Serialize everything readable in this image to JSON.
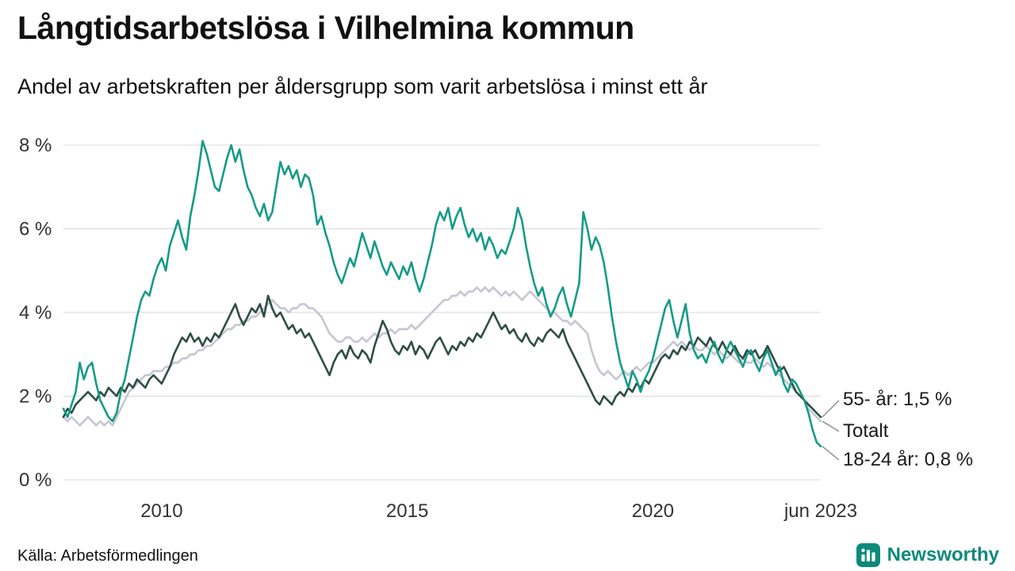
{
  "header": {
    "title": "Långtidsarbetslösa i Vilhelmina kommun",
    "subtitle": "Andel av arbetskraften per åldersgrupp som varit arbetslösa i minst ett år"
  },
  "annotations": [
    {
      "label": "55- år: 1,5 %"
    },
    {
      "label": "Totalt"
    },
    {
      "label": "18-24 år: 0,8 %"
    }
  ],
  "footer": {
    "source": "Källa: Arbetsförmedlingen",
    "brand": "Newsworthy"
  },
  "colors": {
    "teal_line": "#159b87",
    "dark_line": "#2e4e46",
    "gray_line": "#c5c6d1",
    "brand_teal": "#0d8a7a",
    "grid": "#d9d9d9",
    "axis_text": "#333333",
    "leader": "#8a8a8a"
  },
  "chart_data": {
    "type": "line",
    "title": "Långtidsarbetslösa i Vilhelmina kommun",
    "subtitle": "Andel av arbetskraften per åldersgrupp som varit arbetslösa i minst ett år",
    "unit": "%",
    "frequency": "monthly",
    "x_start": "2008-01",
    "x_end": "2023-06",
    "ylim": [
      0,
      8.5
    ],
    "grid": true,
    "grid_color": "#d9d9d9",
    "axis_color": "#333333",
    "legend_position": "right-end-labels",
    "yticks": [
      {
        "value": 0,
        "label": "0 %"
      },
      {
        "value": 2,
        "label": "2 %"
      },
      {
        "value": 4,
        "label": "4 %"
      },
      {
        "value": 6,
        "label": "6 %"
      },
      {
        "value": 8,
        "label": "8 %"
      }
    ],
    "xticks": [
      {
        "index": 24,
        "label": "2010"
      },
      {
        "index": 84,
        "label": "2015"
      },
      {
        "index": 144,
        "label": "2020"
      },
      {
        "index": 185,
        "label": "jun 2023"
      }
    ],
    "annotation_targets": [
      "55- år",
      "Totalt",
      "18-24 år"
    ],
    "series": [
      {
        "name": "18-24 år",
        "color": "#159b87",
        "end_label": "18-24 år: 0,8 %",
        "end_value": 0.8,
        "values": [
          1.7,
          1.5,
          1.8,
          2.1,
          2.8,
          2.4,
          2.7,
          2.8,
          2.3,
          1.9,
          1.7,
          1.5,
          1.4,
          1.6,
          2.1,
          2.4,
          2.9,
          3.4,
          3.9,
          4.3,
          4.5,
          4.4,
          4.8,
          5.1,
          5.3,
          5.0,
          5.6,
          5.9,
          6.2,
          5.8,
          5.5,
          6.3,
          6.8,
          7.4,
          8.1,
          7.8,
          7.4,
          7.0,
          6.9,
          7.3,
          7.7,
          8.0,
          7.6,
          7.9,
          7.4,
          7.0,
          6.8,
          6.5,
          6.3,
          6.6,
          6.2,
          6.4,
          7.0,
          7.6,
          7.3,
          7.5,
          7.2,
          7.4,
          7.0,
          7.3,
          7.2,
          6.8,
          6.1,
          6.3,
          5.9,
          5.6,
          5.2,
          4.9,
          4.7,
          5.0,
          5.3,
          5.1,
          5.5,
          5.9,
          5.6,
          5.3,
          5.7,
          5.4,
          5.1,
          4.9,
          5.2,
          5.0,
          4.8,
          5.1,
          4.9,
          5.2,
          4.8,
          4.5,
          4.8,
          5.2,
          5.6,
          6.1,
          6.4,
          6.2,
          6.5,
          6.0,
          6.3,
          6.5,
          6.1,
          5.8,
          6.0,
          5.7,
          5.9,
          5.5,
          5.8,
          5.6,
          5.3,
          5.5,
          5.4,
          5.7,
          6.0,
          6.5,
          6.2,
          5.6,
          5.1,
          4.7,
          4.4,
          4.6,
          4.2,
          3.9,
          4.1,
          4.4,
          4.6,
          4.2,
          3.9,
          4.3,
          4.7,
          6.4,
          6.0,
          5.5,
          5.8,
          5.6,
          5.2,
          4.6,
          3.9,
          3.3,
          2.8,
          2.5,
          2.2,
          2.6,
          2.4,
          2.1,
          2.4,
          2.6,
          2.9,
          3.3,
          3.7,
          4.1,
          4.3,
          3.8,
          3.4,
          3.8,
          4.2,
          3.5,
          3.1,
          2.9,
          3.0,
          2.8,
          3.1,
          3.3,
          3.0,
          2.8,
          3.1,
          3.3,
          3.1,
          2.9,
          2.7,
          3.0,
          3.1,
          2.8,
          2.6,
          2.9,
          3.1,
          2.8,
          2.5,
          2.7,
          2.3,
          2.1,
          2.4,
          2.3,
          2.1,
          1.9,
          1.6,
          1.2,
          0.9,
          0.8
        ]
      },
      {
        "name": "55- år",
        "color": "#2e4e46",
        "end_label": "55- år: 1,5 %",
        "end_value": 1.5,
        "values": [
          1.5,
          1.7,
          1.6,
          1.8,
          1.9,
          2.0,
          2.1,
          2.0,
          1.9,
          2.1,
          2.0,
          2.2,
          2.1,
          2.0,
          2.2,
          2.1,
          2.3,
          2.2,
          2.4,
          2.3,
          2.2,
          2.4,
          2.5,
          2.4,
          2.3,
          2.5,
          2.7,
          3.0,
          3.2,
          3.4,
          3.3,
          3.5,
          3.3,
          3.4,
          3.2,
          3.4,
          3.3,
          3.5,
          3.4,
          3.6,
          3.8,
          4.0,
          4.2,
          3.9,
          3.7,
          3.9,
          4.1,
          4.0,
          4.2,
          3.9,
          4.4,
          4.1,
          3.9,
          4.0,
          3.8,
          3.6,
          3.7,
          3.5,
          3.6,
          3.4,
          3.5,
          3.3,
          3.1,
          2.9,
          2.7,
          2.5,
          2.8,
          3.0,
          3.1,
          2.9,
          3.2,
          3.0,
          2.9,
          3.1,
          3.0,
          2.8,
          3.2,
          3.5,
          3.8,
          3.6,
          3.3,
          3.1,
          3.0,
          3.2,
          3.1,
          3.3,
          3.0,
          3.2,
          3.1,
          2.9,
          3.1,
          3.3,
          3.4,
          3.2,
          3.0,
          3.2,
          3.1,
          3.3,
          3.2,
          3.4,
          3.3,
          3.5,
          3.4,
          3.6,
          3.8,
          4.0,
          3.8,
          3.6,
          3.7,
          3.5,
          3.6,
          3.4,
          3.3,
          3.5,
          3.3,
          3.2,
          3.4,
          3.3,
          3.5,
          3.6,
          3.5,
          3.4,
          3.6,
          3.3,
          3.1,
          2.9,
          2.7,
          2.5,
          2.3,
          2.1,
          1.9,
          1.8,
          2.0,
          1.9,
          1.8,
          2.0,
          2.1,
          2.0,
          2.2,
          2.1,
          2.3,
          2.2,
          2.4,
          2.3,
          2.5,
          2.7,
          2.9,
          3.0,
          2.9,
          3.1,
          3.0,
          3.2,
          3.1,
          3.3,
          3.2,
          3.4,
          3.3,
          3.2,
          3.4,
          3.2,
          3.1,
          3.3,
          3.1,
          3.0,
          3.2,
          3.0,
          2.9,
          3.1,
          3.0,
          3.1,
          2.9,
          3.0,
          3.2,
          3.0,
          2.8,
          2.6,
          2.7,
          2.5,
          2.3,
          2.1,
          2.0,
          1.9,
          1.8,
          1.7,
          1.6,
          1.5
        ]
      },
      {
        "name": "Totalt",
        "color": "#c5c6d1",
        "end_label": "Totalt",
        "end_value": 1.4,
        "values": [
          1.5,
          1.4,
          1.5,
          1.4,
          1.3,
          1.4,
          1.5,
          1.4,
          1.3,
          1.4,
          1.3,
          1.4,
          1.3,
          1.5,
          1.7,
          1.9,
          2.1,
          2.2,
          2.3,
          2.4,
          2.5,
          2.5,
          2.6,
          2.6,
          2.6,
          2.7,
          2.7,
          2.8,
          2.8,
          2.9,
          2.9,
          3.0,
          3.0,
          3.1,
          3.1,
          3.2,
          3.2,
          3.3,
          3.4,
          3.5,
          3.6,
          3.6,
          3.7,
          3.7,
          3.8,
          3.8,
          3.9,
          3.9,
          4.0,
          4.1,
          4.2,
          4.3,
          4.2,
          4.1,
          4.1,
          4.0,
          4.1,
          4.1,
          4.2,
          4.2,
          4.1,
          4.1,
          4.0,
          3.9,
          3.7,
          3.5,
          3.4,
          3.3,
          3.3,
          3.4,
          3.4,
          3.3,
          3.3,
          3.4,
          3.3,
          3.4,
          3.5,
          3.4,
          3.5,
          3.5,
          3.6,
          3.5,
          3.6,
          3.6,
          3.6,
          3.7,
          3.6,
          3.7,
          3.8,
          3.9,
          4.0,
          4.1,
          4.2,
          4.3,
          4.3,
          4.4,
          4.4,
          4.5,
          4.4,
          4.5,
          4.5,
          4.6,
          4.5,
          4.6,
          4.5,
          4.6,
          4.5,
          4.4,
          4.5,
          4.4,
          4.5,
          4.4,
          4.3,
          4.4,
          4.5,
          4.4,
          4.3,
          4.2,
          4.1,
          4.0,
          4.0,
          3.9,
          3.8,
          3.8,
          3.7,
          3.8,
          3.7,
          3.6,
          3.5,
          3.1,
          2.8,
          2.6,
          2.5,
          2.6,
          2.5,
          2.4,
          2.5,
          2.6,
          2.5,
          2.6,
          2.7,
          2.6,
          2.7,
          2.8,
          2.8,
          2.9,
          3.0,
          3.1,
          3.2,
          3.3,
          3.2,
          3.3,
          3.2,
          3.1,
          3.2,
          3.1,
          3.1,
          3.2,
          3.1,
          3.0,
          3.1,
          3.0,
          2.9,
          3.0,
          2.9,
          2.8,
          2.9,
          2.8,
          2.8,
          2.9,
          2.8,
          2.7,
          2.8,
          2.7,
          2.6,
          2.5,
          2.4,
          2.3,
          2.2,
          2.1,
          2.0,
          1.9,
          1.7,
          1.6,
          1.5,
          1.4
        ]
      }
    ]
  }
}
